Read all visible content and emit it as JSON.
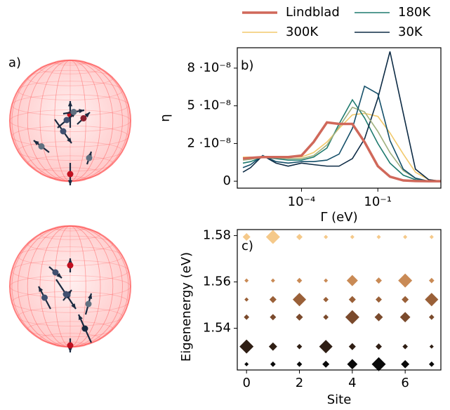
{
  "bloch_panel": {
    "label": "a)"
  },
  "chart_data": [
    {
      "type": "line",
      "label": "b)",
      "xlabel": "Γ (eV)",
      "ylabel": "η",
      "xscale": "log",
      "legend": "above",
      "x": [
        5e-07,
        1e-06,
        3e-06,
        1e-05,
        3e-05,
        0.0001,
        0.0003,
        0.001,
        0.003,
        0.01,
        0.03,
        0.1,
        0.3,
        1,
        3,
        10,
        30
      ],
      "xlim": [
        3e-07,
        30
      ],
      "xticks": [
        {
          "value": 0.0001,
          "label": "10⁻⁴"
        },
        {
          "value": 0.1,
          "label": "10⁻¹"
        }
      ],
      "ylim": [
        -4.6e-09,
        8.85e-08
      ],
      "yticks": [
        0,
        {
          "value": 2.5e-08,
          "label": "2 ·10⁻⁸"
        },
        {
          "value": 5e-08,
          "label": "5 ·10⁻⁸"
        },
        {
          "value": 7.5e-08,
          "label": "8 ·10⁻⁸"
        }
      ],
      "series": [
        {
          "name": "Lindblad",
          "color": "#d0685a",
          "linewidth": 3.5,
          "values": [
            1.5e-08,
            1.55e-08,
            1.6e-08,
            1.6e-08,
            1.6e-08,
            1.7e-08,
            2.6e-08,
            3.9e-08,
            3.8e-08,
            3.8e-08,
            2.6e-08,
            1e-08,
            3e-09,
            5e-10,
            1e-10,
            0,
            0
          ]
        },
        {
          "name": "300K",
          "color": "#f2c96b",
          "linewidth": 1.6,
          "values": [
            1.6e-08,
            1.6e-08,
            1.6e-08,
            1.6e-08,
            1.6e-08,
            1.6e-08,
            1.9e-08,
            2.6e-08,
            3.5e-08,
            4.4e-08,
            4.5e-08,
            4.3e-08,
            3.2e-08,
            1.8e-08,
            6e-09,
            1e-09,
            0
          ]
        },
        {
          "name": "180K",
          "color": "#1e7a6e",
          "linewidth": 1.6,
          "values": [
            1.2e-08,
            1.3e-08,
            1.6e-08,
            1.5e-08,
            1.4e-08,
            1.4e-08,
            1.6e-08,
            2.2e-08,
            3.8e-08,
            5.4e-08,
            4.2e-08,
            2.5e-08,
            1.2e-08,
            4e-09,
            1e-09,
            0,
            0
          ]
        },
        {
          "name": "30K",
          "color": "#0d2b45",
          "linewidth": 1.6,
          "values": [
            6e-09,
            9e-09,
            1.7e-08,
            1.2e-08,
            1e-08,
            1.2e-08,
            1.1e-08,
            1e-08,
            1e-08,
            1.5e-08,
            2.8e-08,
            5.5e-08,
            8.6e-08,
            4.5e-08,
            8e-09,
            1e-09,
            0
          ]
        },
        {
          "color": "#9fb07e",
          "linewidth": 1.6,
          "values": [
            1.4e-08,
            1.45e-08,
            1.6e-08,
            1.55e-08,
            1.5e-08,
            1.5e-08,
            1.7e-08,
            2.4e-08,
            3.6e-08,
            4.9e-08,
            4.6e-08,
            3.3e-08,
            1.9e-08,
            7e-09,
            2e-09,
            0,
            0
          ]
        },
        {
          "color": "#15506a",
          "linewidth": 1.6,
          "values": [
            9e-09,
            1.1e-08,
            1.7e-08,
            1.3e-08,
            1.2e-08,
            1.3e-08,
            1.3e-08,
            1.4e-08,
            1.8e-08,
            3.5e-08,
            6.3e-08,
            5.8e-08,
            2.7e-08,
            8e-09,
            2e-09,
            0,
            0
          ]
        }
      ]
    },
    {
      "type": "scatter",
      "label": "c)",
      "xlabel": "Site",
      "ylabel": "Eigenenergy (eV)",
      "x": [
        0,
        1,
        2,
        3,
        4,
        5,
        6,
        7
      ],
      "xlim": [
        -0.35,
        7.35
      ],
      "xticks": [
        0,
        2,
        4,
        6
      ],
      "ylim": [
        1.522,
        1.5826
      ],
      "yticks": [
        1.54,
        1.56,
        1.58
      ],
      "series": [
        {
          "y": 1.5794,
          "color": "#f5c98a",
          "sizes": [
            0.25,
            1.0,
            0.15,
            0.05,
            0.05,
            0.05,
            0.05,
            0.05
          ]
        },
        {
          "y": 1.5606,
          "color": "#c98a55",
          "sizes": [
            0.05,
            0.05,
            0.1,
            0.05,
            0.6,
            0.15,
            1.0,
            0.1
          ]
        },
        {
          "y": 1.5524,
          "color": "#9a6038",
          "sizes": [
            0.05,
            0.2,
            0.9,
            0.1,
            0.2,
            0.15,
            0.2,
            0.9
          ]
        },
        {
          "y": 1.5448,
          "color": "#7a4a2c",
          "sizes": [
            0.1,
            0.15,
            0.2,
            0.1,
            1.0,
            0.3,
            0.5,
            0.1
          ]
        },
        {
          "y": 1.5321,
          "color": "#2f1e14",
          "sizes": [
            1.0,
            0.3,
            0.1,
            0.9,
            0.2,
            0.15,
            0.1,
            0.05
          ]
        },
        {
          "y": 1.5245,
          "color": "#0a0a0a",
          "sizes": [
            0.05,
            0.1,
            0.1,
            0.2,
            0.5,
            1.0,
            0.3,
            0.1
          ]
        }
      ]
    }
  ]
}
